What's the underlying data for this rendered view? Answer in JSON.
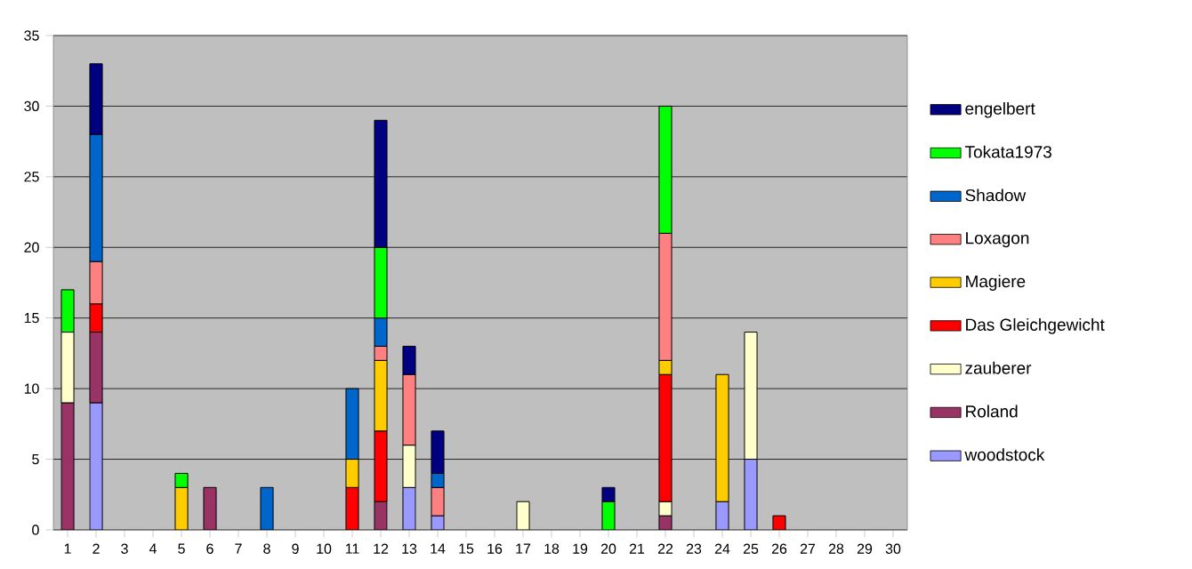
{
  "chart_data": {
    "type": "bar",
    "stacked": true,
    "categories": [
      "1",
      "2",
      "3",
      "4",
      "5",
      "6",
      "7",
      "8",
      "9",
      "10",
      "11",
      "12",
      "13",
      "14",
      "15",
      "16",
      "17",
      "18",
      "19",
      "20",
      "21",
      "22",
      "23",
      "24",
      "25",
      "26",
      "27",
      "28",
      "29",
      "30"
    ],
    "series": [
      {
        "name": "woodstock",
        "color": "#9999ff",
        "values": [
          null,
          9,
          null,
          null,
          null,
          null,
          null,
          null,
          null,
          null,
          null,
          null,
          3,
          1,
          null,
          null,
          null,
          null,
          null,
          null,
          null,
          null,
          null,
          2,
          5,
          null,
          null,
          null,
          null,
          null
        ]
      },
      {
        "name": "Roland",
        "color": "#993366",
        "values": [
          9,
          5,
          null,
          null,
          null,
          3,
          null,
          null,
          null,
          null,
          null,
          2,
          null,
          null,
          null,
          null,
          null,
          null,
          null,
          null,
          null,
          1,
          null,
          null,
          null,
          null,
          null,
          null,
          null,
          null
        ]
      },
      {
        "name": "zauberer",
        "color": "#ffffcc",
        "values": [
          5,
          null,
          null,
          null,
          null,
          null,
          null,
          null,
          null,
          null,
          null,
          null,
          3,
          null,
          null,
          null,
          2,
          null,
          null,
          null,
          null,
          1,
          null,
          null,
          9,
          null,
          null,
          null,
          null,
          null
        ]
      },
      {
        "name": "Das Gleichgewicht",
        "color": "#ff0000",
        "values": [
          null,
          2,
          null,
          null,
          null,
          null,
          null,
          null,
          null,
          null,
          3,
          5,
          null,
          null,
          null,
          null,
          null,
          null,
          null,
          null,
          null,
          9,
          null,
          null,
          null,
          1,
          null,
          null,
          null,
          null
        ]
      },
      {
        "name": "Magiere",
        "color": "#ffcc00",
        "values": [
          null,
          null,
          null,
          null,
          3,
          null,
          null,
          null,
          null,
          null,
          2,
          5,
          null,
          null,
          null,
          null,
          null,
          null,
          null,
          null,
          null,
          1,
          null,
          9,
          null,
          null,
          null,
          null,
          null,
          null
        ]
      },
      {
        "name": "Loxagon",
        "color": "#ff8080",
        "values": [
          null,
          3,
          null,
          null,
          null,
          null,
          null,
          null,
          null,
          null,
          null,
          1,
          5,
          2,
          null,
          null,
          null,
          null,
          null,
          null,
          null,
          9,
          null,
          null,
          null,
          null,
          null,
          null,
          null,
          null
        ]
      },
      {
        "name": "Shadow",
        "color": "#0066cc",
        "values": [
          null,
          9,
          null,
          null,
          null,
          null,
          null,
          3,
          null,
          null,
          5,
          2,
          null,
          1,
          null,
          null,
          null,
          null,
          null,
          null,
          null,
          null,
          null,
          null,
          null,
          null,
          null,
          null,
          null,
          null
        ]
      },
      {
        "name": "Tokata1973",
        "color": "#00ff00",
        "values": [
          3,
          null,
          null,
          null,
          1,
          null,
          null,
          null,
          null,
          null,
          null,
          5,
          null,
          null,
          null,
          null,
          null,
          null,
          null,
          2,
          null,
          9,
          null,
          null,
          null,
          null,
          null,
          null,
          null,
          null
        ]
      },
      {
        "name": "engelbert",
        "color": "#000080",
        "values": [
          null,
          5,
          null,
          null,
          null,
          null,
          null,
          null,
          null,
          null,
          null,
          9,
          2,
          3,
          null,
          null,
          null,
          null,
          null,
          1,
          null,
          null,
          null,
          null,
          null,
          null,
          null,
          null,
          null,
          null
        ]
      }
    ],
    "ylim": [
      0,
      35
    ],
    "yticks": [
      0,
      5,
      10,
      15,
      20,
      25,
      30,
      35
    ],
    "grid": "y",
    "legend": "right"
  }
}
